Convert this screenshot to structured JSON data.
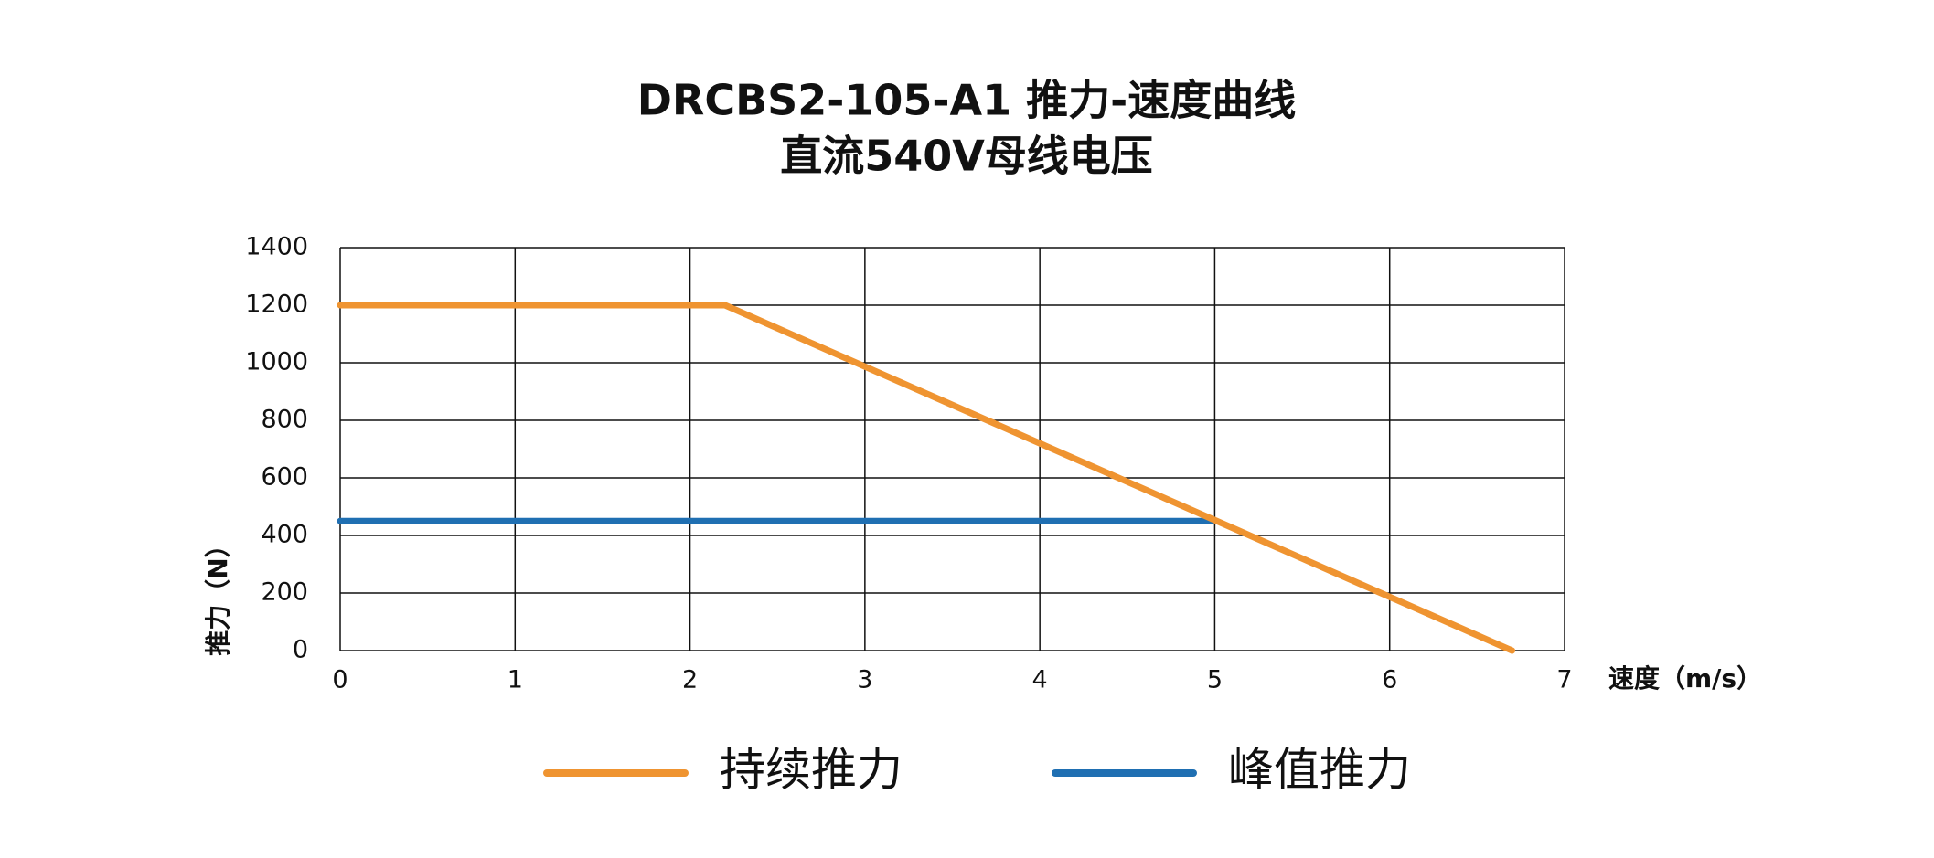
{
  "chart_data": {
    "type": "line",
    "title": "DRCBS2-105-A1 推力-速度曲线",
    "subtitle": "直流540V母线电压",
    "xlabel": "速度（m/s）",
    "ylabel": "推力（N）",
    "xlim": [
      0,
      7
    ],
    "xticks": [
      0,
      1,
      2,
      3,
      4,
      5,
      6,
      7
    ],
    "ylim": [
      0,
      1400
    ],
    "yticks": [
      0,
      200,
      400,
      600,
      800,
      1000,
      1200,
      1400
    ],
    "grid": true,
    "legend": "bottom",
    "series": [
      {
        "name": "持续推力",
        "color": "#ef9431",
        "x": [
          0,
          2.2,
          6.7
        ],
        "values": [
          1200,
          1200,
          0
        ]
      },
      {
        "name": "峰值推力",
        "color": "#1f6fb2",
        "x": [
          0,
          5
        ],
        "values": [
          450,
          450
        ]
      }
    ]
  }
}
